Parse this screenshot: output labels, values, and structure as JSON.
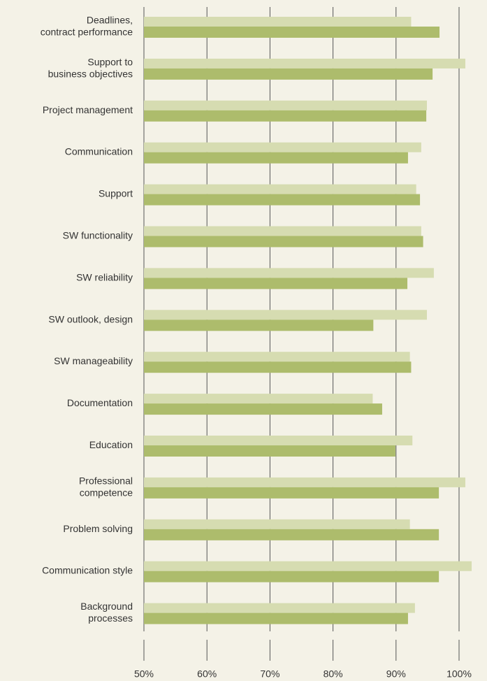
{
  "chart_data": {
    "type": "bar",
    "orientation": "horizontal",
    "categories": [
      [
        "Deadlines,",
        "contract performance"
      ],
      [
        "Support to",
        "business objectives"
      ],
      [
        "Project management"
      ],
      [
        "Communication"
      ],
      [
        "Support"
      ],
      [
        "SW functionality"
      ],
      [
        "SW reliability"
      ],
      [
        "SW outlook, design"
      ],
      [
        "SW manageability"
      ],
      [
        "Documentation"
      ],
      [
        "Education"
      ],
      [
        "Professional",
        "competence"
      ],
      [
        "Problem solving"
      ],
      [
        "Communication style"
      ],
      [
        "Background",
        "processes"
      ]
    ],
    "series": [
      {
        "color": "#d6dcb1",
        "values": [
          92.4,
          101.0,
          94.9,
          94.0,
          93.2,
          94.0,
          96.0,
          94.9,
          92.2,
          86.3,
          92.6,
          101.0,
          92.2,
          102.0,
          93.0
        ]
      },
      {
        "color": "#adbc6c",
        "values": [
          96.9,
          95.8,
          94.8,
          91.9,
          93.8,
          94.3,
          91.8,
          86.4,
          92.4,
          87.8,
          89.9,
          96.8,
          96.8,
          96.8,
          91.9
        ]
      }
    ],
    "xlim": [
      50,
      100
    ],
    "xticks": [
      {
        "value": 50,
        "label": "50%"
      },
      {
        "value": 60,
        "label": "60%"
      },
      {
        "value": 70,
        "label": "70%"
      },
      {
        "value": 80,
        "label": "80%"
      },
      {
        "value": 90,
        "label": "90%"
      },
      {
        "value": 100,
        "label": "100%"
      }
    ],
    "grid": true
  }
}
